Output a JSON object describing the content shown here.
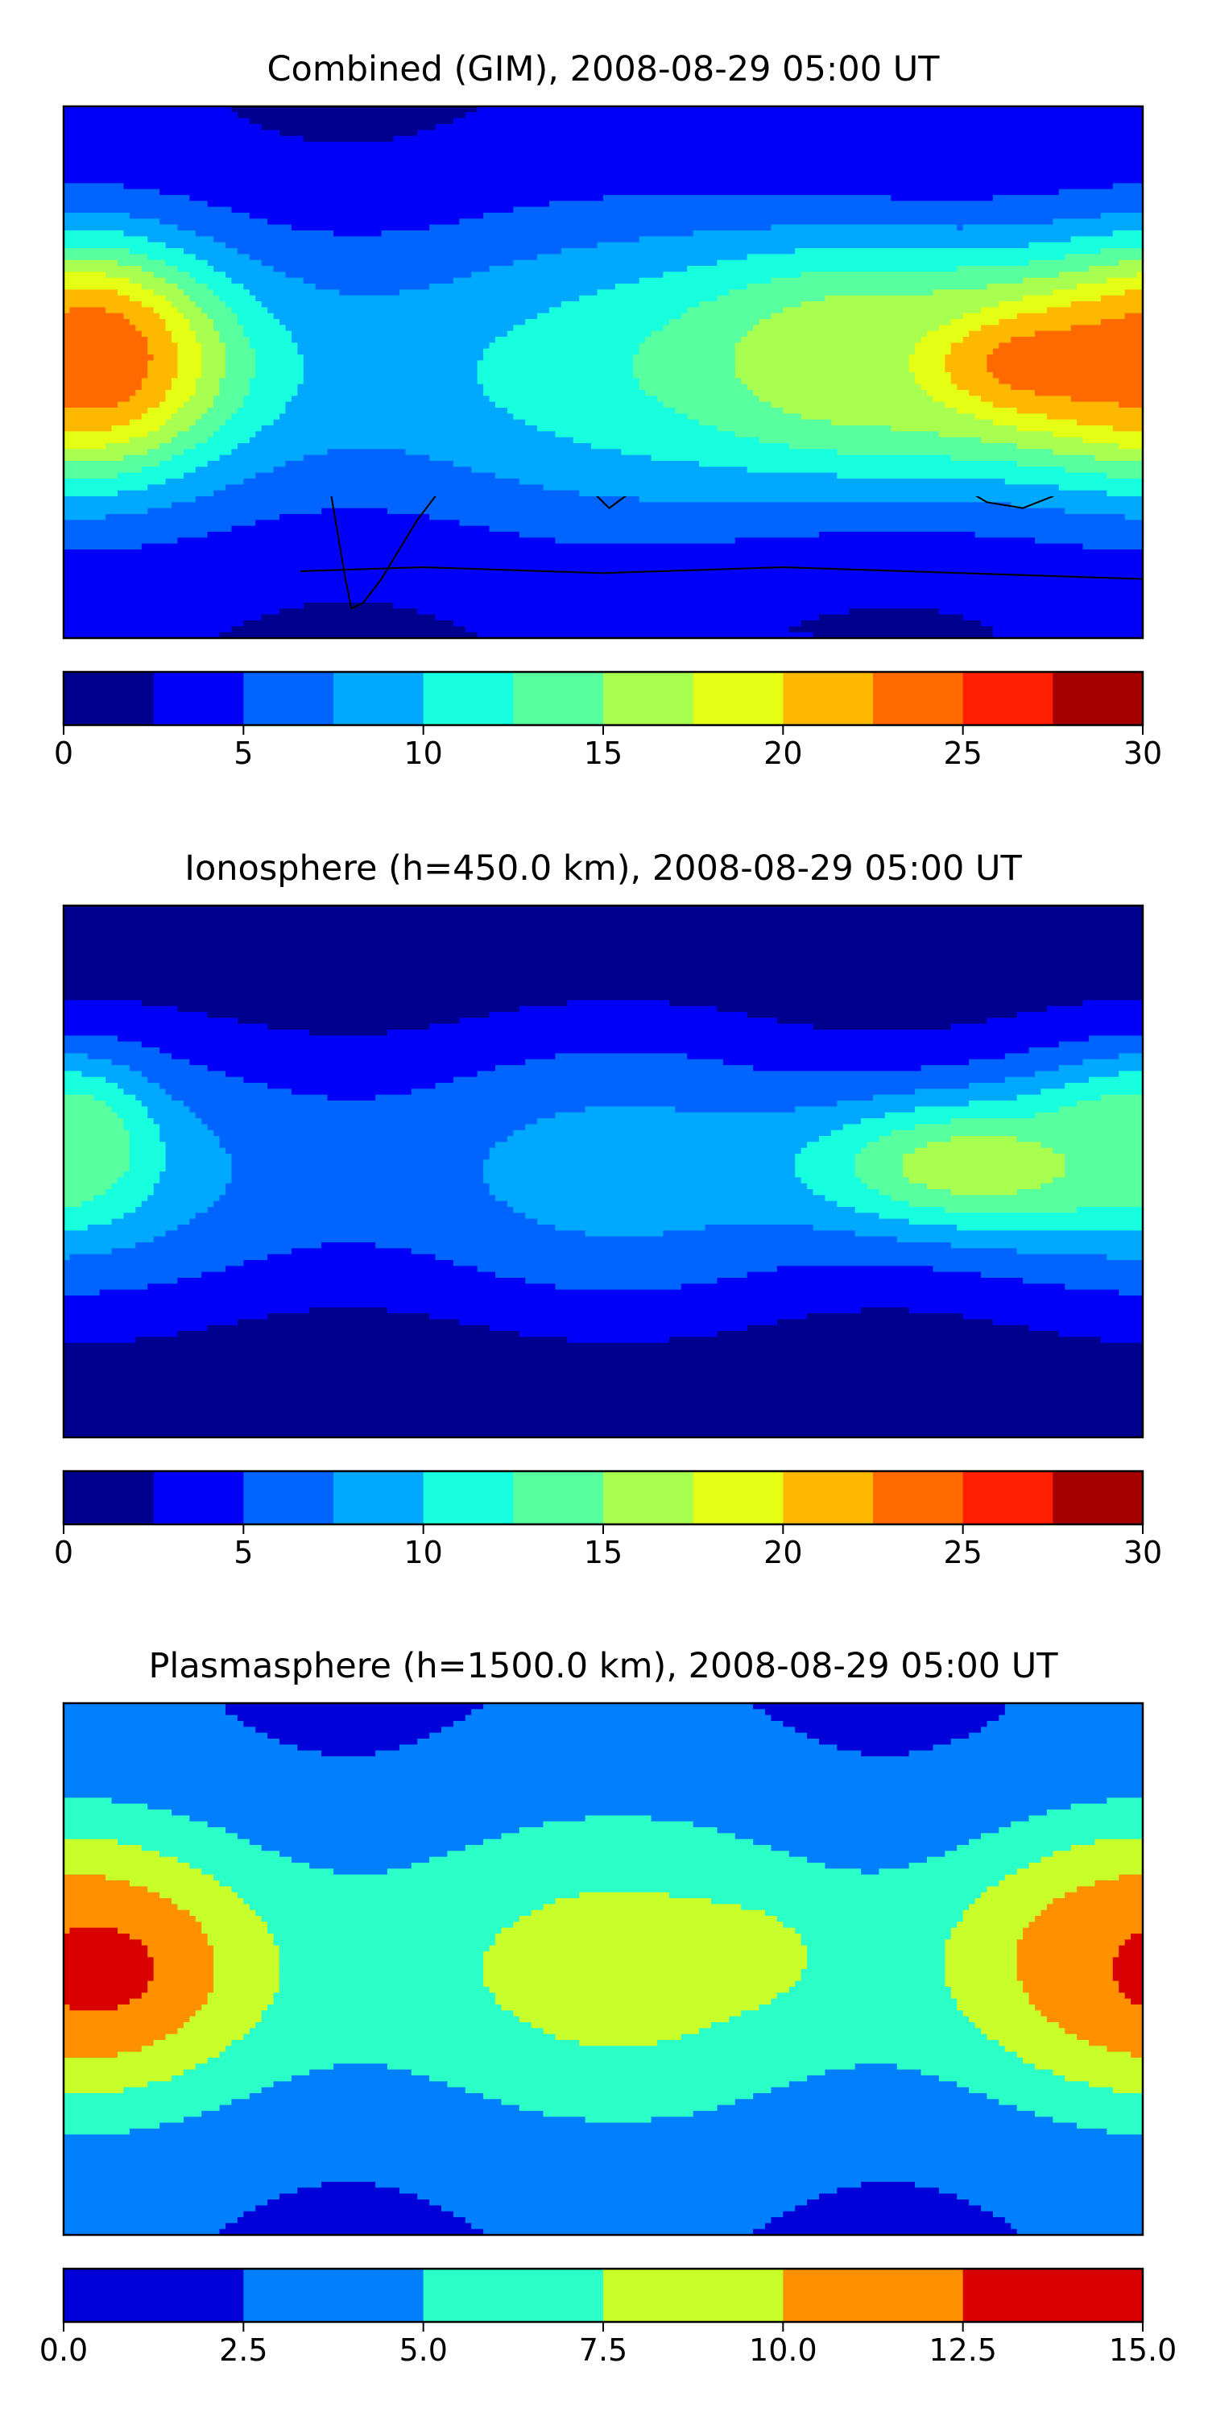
{
  "figure": {
    "panels": [
      {
        "title": "Combined (GIM), 2008-08-29 05:00 UT",
        "colorbar": {
          "levels": [
            0,
            2.5,
            5,
            7.5,
            10,
            12.5,
            15,
            17.5,
            20,
            22.5,
            25,
            27.5,
            30
          ],
          "colors": [
            "#00008f",
            "#0000f8",
            "#0064ff",
            "#00a8ff",
            "#18ffe0",
            "#58ff9e",
            "#a8ff50",
            "#e4ff14",
            "#ffb800",
            "#ff6a00",
            "#ff1e00",
            "#a40000"
          ],
          "ticks": [
            "0",
            "5",
            "10",
            "15",
            "20",
            "25",
            "30"
          ]
        }
      },
      {
        "title": "Ionosphere  (h=450.0 km), 2008-08-29 05:00 UT",
        "colorbar": {
          "levels": [
            0,
            2.5,
            5,
            7.5,
            10,
            12.5,
            15,
            17.5,
            20,
            22.5,
            25,
            27.5,
            30
          ],
          "colors": [
            "#00008f",
            "#0000f8",
            "#0064ff",
            "#00a8ff",
            "#18ffe0",
            "#58ff9e",
            "#a8ff50",
            "#e4ff14",
            "#ffb800",
            "#ff6a00",
            "#ff1e00",
            "#a40000"
          ],
          "ticks": [
            "0",
            "5",
            "10",
            "15",
            "20",
            "25",
            "30"
          ]
        }
      },
      {
        "title": "Plasmasphere (h=1500.0 km), 2008-08-29 05:00 UT",
        "colorbar": {
          "levels": [
            0,
            2.5,
            5,
            7.5,
            10,
            12.5,
            15
          ],
          "colors": [
            "#0000d8",
            "#0080ff",
            "#2affc8",
            "#c8ff2a",
            "#ff9000",
            "#d80000"
          ],
          "ticks": [
            "0.0",
            "2.5",
            "5.0",
            "7.5",
            "10.0",
            "12.5",
            "15.0"
          ]
        }
      }
    ]
  },
  "chart_data": [
    {
      "type": "heatmap",
      "title": "Combined (GIM), 2008-08-29 05:00 UT",
      "map_extent": {
        "lon": [
          -180,
          180
        ],
        "lat": [
          -90,
          90
        ]
      },
      "levels": [
        0,
        2.5,
        5,
        7.5,
        10,
        12.5,
        15,
        17.5,
        20,
        22.5,
        25,
        27.5,
        30
      ],
      "features": [
        {
          "lon": -170,
          "lat": 5,
          "peak": 25,
          "spread_lon": 25,
          "spread_lat": 22
        },
        {
          "lon": 150,
          "lat": 3,
          "peak": 24,
          "spread_lon": 45,
          "spread_lat": 20
        },
        {
          "lon": 80,
          "lat": 5,
          "peak": 17,
          "spread_lon": 40,
          "spread_lat": 25
        }
      ],
      "background_range": [
        2.5,
        10
      ]
    },
    {
      "type": "heatmap",
      "title": "Ionosphere  (h=450.0 km), 2008-08-29 05:00 UT",
      "map_extent": {
        "lon": [
          -180,
          180
        ],
        "lat": [
          -90,
          90
        ]
      },
      "levels": [
        0,
        2.5,
        5,
        7.5,
        10,
        12.5,
        15,
        17.5,
        20,
        22.5,
        25,
        27.5,
        30
      ],
      "features": [
        {
          "lon": -175,
          "lat": 10,
          "peak": 14,
          "spread_lon": 15,
          "spread_lat": 15
        },
        {
          "lon": 125,
          "lat": 2,
          "peak": 17,
          "spread_lon": 40,
          "spread_lat": 15
        },
        {
          "lon": 170,
          "lat": 10,
          "peak": 14,
          "spread_lon": 20,
          "spread_lat": 15
        }
      ],
      "background_range": [
        0,
        7.5
      ]
    },
    {
      "type": "heatmap",
      "title": "Plasmasphere (h=1500.0 km), 2008-08-29 05:00 UT",
      "map_extent": {
        "lon": [
          -180,
          180
        ],
        "lat": [
          -90,
          90
        ]
      },
      "levels": [
        0,
        2.5,
        5,
        7.5,
        10,
        12.5,
        15
      ],
      "features": [
        {
          "lon": -170,
          "lat": 0,
          "peak": 13.5,
          "spread_lon": 30,
          "spread_lat": 22
        },
        {
          "lon": 170,
          "lat": 5,
          "peak": 11,
          "spread_lon": 30,
          "spread_lat": 22
        },
        {
          "lon": 45,
          "lat": 5,
          "peak": 9,
          "spread_lon": 15,
          "spread_lat": 10
        }
      ],
      "background_range": [
        2.5,
        7.5
      ]
    }
  ]
}
